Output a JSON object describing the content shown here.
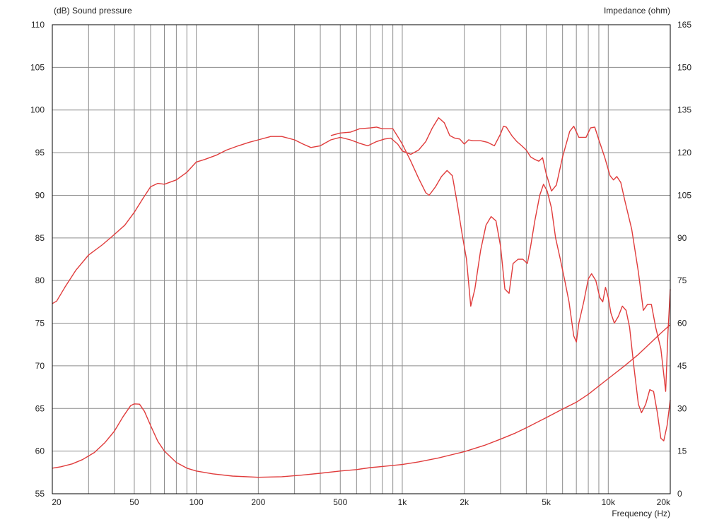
{
  "chart_data": {
    "type": "line",
    "y_axis_left": {
      "label": "(dB)  Sound pressure",
      "ylim": [
        55,
        110
      ],
      "ticks": [
        "55",
        "60",
        "65",
        "70",
        "75",
        "80",
        "85",
        "90",
        "95",
        "100",
        "105",
        "110"
      ],
      "tick_values": [
        55,
        60,
        65,
        70,
        75,
        80,
        85,
        90,
        95,
        100,
        105,
        110
      ]
    },
    "y_axis_right": {
      "label": "Impedance  (ohm)",
      "ylim": [
        0,
        165
      ],
      "ticks": [
        "0",
        "15",
        "30",
        "45",
        "60",
        "75",
        "90",
        "105",
        "120",
        "135",
        "150",
        "165"
      ],
      "tick_values": [
        0,
        15,
        30,
        45,
        60,
        75,
        90,
        105,
        120,
        135,
        150,
        165
      ]
    },
    "x_axis": {
      "label": "Frequency  (Hz)",
      "scale": "log",
      "xlim": [
        20,
        20000
      ],
      "ticks": [
        "20",
        "50",
        "100",
        "200",
        "500",
        "1k",
        "2k",
        "5k",
        "10k",
        "20k"
      ],
      "tick_values": [
        20,
        50,
        100,
        200,
        500,
        1000,
        2000,
        5000,
        10000,
        20000
      ]
    },
    "grid": true,
    "line_color": "#e03c3c",
    "series": [
      {
        "axis": "left",
        "points": [
          [
            20,
            77.3
          ],
          [
            21,
            77.6
          ],
          [
            23,
            79.2
          ],
          [
            26,
            81.2
          ],
          [
            30,
            83
          ],
          [
            35,
            84.2
          ],
          [
            40,
            85.4
          ],
          [
            45,
            86.5
          ],
          [
            50,
            88
          ],
          [
            55,
            89.6
          ],
          [
            60,
            91
          ],
          [
            65,
            91.4
          ],
          [
            70,
            91.3
          ],
          [
            80,
            91.8
          ],
          [
            90,
            92.7
          ],
          [
            100,
            93.9
          ],
          [
            110,
            94.2
          ],
          [
            125,
            94.7
          ],
          [
            140,
            95.3
          ],
          [
            160,
            95.8
          ],
          [
            180,
            96.2
          ],
          [
            200,
            96.5
          ],
          [
            230,
            96.9
          ],
          [
            260,
            96.9
          ],
          [
            300,
            96.5
          ],
          [
            330,
            96
          ],
          [
            360,
            95.6
          ],
          [
            400,
            95.8
          ],
          [
            450,
            96.5
          ],
          [
            500,
            96.8
          ],
          [
            560,
            96.5
          ],
          [
            620,
            96.1
          ],
          [
            680,
            95.8
          ],
          [
            750,
            96.3
          ],
          [
            820,
            96.6
          ],
          [
            880,
            96.7
          ],
          [
            950,
            96
          ],
          [
            1000,
            95.2
          ],
          [
            1100,
            94.8
          ],
          [
            1200,
            95.3
          ],
          [
            1300,
            96.3
          ],
          [
            1400,
            97.9
          ],
          [
            1500,
            99.1
          ],
          [
            1600,
            98.5
          ],
          [
            1700,
            97
          ],
          [
            1800,
            96.7
          ],
          [
            1900,
            96.6
          ],
          [
            2000,
            96
          ],
          [
            2100,
            96.5
          ],
          [
            2200,
            96.4
          ],
          [
            2400,
            96.4
          ],
          [
            2600,
            96.2
          ],
          [
            2800,
            95.8
          ],
          [
            3000,
            97.2
          ],
          [
            3100,
            98.1
          ],
          [
            3200,
            98
          ],
          [
            3400,
            97
          ],
          [
            3600,
            96.3
          ],
          [
            3800,
            95.8
          ],
          [
            4000,
            95.3
          ],
          [
            4200,
            94.5
          ],
          [
            4400,
            94.2
          ],
          [
            4600,
            94
          ],
          [
            4800,
            94.4
          ],
          [
            5000,
            92.5
          ],
          [
            5300,
            90.5
          ],
          [
            5600,
            91.2
          ],
          [
            6000,
            94.5
          ],
          [
            6500,
            97.5
          ],
          [
            6800,
            98.1
          ],
          [
            7200,
            96.8
          ],
          [
            7800,
            96.8
          ],
          [
            8200,
            97.9
          ],
          [
            8600,
            98
          ],
          [
            9000,
            96.5
          ],
          [
            9600,
            94.5
          ],
          [
            10200,
            92.3
          ],
          [
            10600,
            91.8
          ],
          [
            11000,
            92.2
          ],
          [
            11500,
            91.5
          ],
          [
            12000,
            89.5
          ],
          [
            13000,
            86
          ],
          [
            14000,
            81
          ],
          [
            14800,
            76.5
          ],
          [
            15500,
            77.2
          ],
          [
            16200,
            77.2
          ],
          [
            17000,
            74.5
          ],
          [
            18000,
            72
          ],
          [
            19000,
            67
          ],
          [
            19500,
            74
          ],
          [
            20000,
            79
          ]
        ]
      },
      {
        "axis": "left",
        "points": [
          [
            450,
            97
          ],
          [
            500,
            97.3
          ],
          [
            560,
            97.4
          ],
          [
            620,
            97.8
          ],
          [
            700,
            97.9
          ],
          [
            750,
            98
          ],
          [
            800,
            97.8
          ],
          [
            900,
            97.8
          ],
          [
            950,
            96.9
          ],
          [
            1000,
            96
          ],
          [
            1100,
            94
          ],
          [
            1200,
            92
          ],
          [
            1300,
            90.3
          ],
          [
            1350,
            90
          ],
          [
            1450,
            91
          ],
          [
            1550,
            92.2
          ],
          [
            1650,
            92.9
          ],
          [
            1750,
            92.3
          ],
          [
            1850,
            89
          ],
          [
            1950,
            85.5
          ],
          [
            2050,
            82.5
          ],
          [
            2150,
            77
          ],
          [
            2250,
            79
          ],
          [
            2400,
            83.5
          ],
          [
            2550,
            86.5
          ],
          [
            2700,
            87.5
          ],
          [
            2850,
            87
          ],
          [
            3000,
            84
          ],
          [
            3150,
            79
          ],
          [
            3300,
            78.5
          ],
          [
            3450,
            82
          ],
          [
            3650,
            82.5
          ],
          [
            3850,
            82.5
          ],
          [
            4050,
            82
          ],
          [
            4200,
            84
          ],
          [
            4400,
            87
          ],
          [
            4650,
            90
          ],
          [
            4850,
            91.3
          ],
          [
            5050,
            90.5
          ],
          [
            5300,
            88.5
          ],
          [
            5550,
            85
          ],
          [
            5850,
            82.5
          ],
          [
            6150,
            80
          ],
          [
            6450,
            77.5
          ],
          [
            6800,
            73.5
          ],
          [
            7000,
            72.8
          ],
          [
            7200,
            75
          ],
          [
            7600,
            77.5
          ],
          [
            8000,
            80.2
          ],
          [
            8300,
            80.8
          ],
          [
            8700,
            80
          ],
          [
            9100,
            78
          ],
          [
            9400,
            77.5
          ],
          [
            9700,
            79.2
          ],
          [
            10000,
            78
          ],
          [
            10300,
            76.2
          ],
          [
            10700,
            75
          ],
          [
            11200,
            75.8
          ],
          [
            11700,
            77
          ],
          [
            12200,
            76.5
          ],
          [
            12700,
            74.5
          ],
          [
            13300,
            70
          ],
          [
            14000,
            65.5
          ],
          [
            14500,
            64.5
          ],
          [
            15200,
            65.5
          ],
          [
            15900,
            67.2
          ],
          [
            16600,
            67
          ],
          [
            17300,
            64.5
          ],
          [
            18000,
            61.5
          ],
          [
            18600,
            61.2
          ],
          [
            19300,
            63
          ],
          [
            20000,
            66
          ]
        ]
      },
      {
        "axis": "right",
        "points": [
          [
            20,
            9
          ],
          [
            22,
            9.5
          ],
          [
            25,
            10.5
          ],
          [
            28,
            12
          ],
          [
            32,
            14.5
          ],
          [
            36,
            18
          ],
          [
            40,
            22
          ],
          [
            44,
            27
          ],
          [
            48,
            31
          ],
          [
            50,
            31.6
          ],
          [
            53,
            31.5
          ],
          [
            56,
            29
          ],
          [
            60,
            24
          ],
          [
            65,
            18.5
          ],
          [
            70,
            15
          ],
          [
            80,
            11
          ],
          [
            90,
            9
          ],
          [
            100,
            8
          ],
          [
            120,
            7
          ],
          [
            150,
            6.2
          ],
          [
            200,
            5.8
          ],
          [
            260,
            6
          ],
          [
            320,
            6.5
          ],
          [
            400,
            7.2
          ],
          [
            500,
            8
          ],
          [
            600,
            8.5
          ],
          [
            700,
            9.2
          ],
          [
            800,
            9.6
          ],
          [
            1000,
            10.3
          ],
          [
            1200,
            11.2
          ],
          [
            1500,
            12.6
          ],
          [
            2000,
            14.8
          ],
          [
            2500,
            17
          ],
          [
            3000,
            19.2
          ],
          [
            3500,
            21.2
          ],
          [
            4000,
            23.2
          ],
          [
            5000,
            26.8
          ],
          [
            6000,
            29.8
          ],
          [
            7000,
            32.2
          ],
          [
            8000,
            35
          ],
          [
            10000,
            40.5
          ],
          [
            12000,
            45
          ],
          [
            14000,
            49
          ],
          [
            16000,
            53
          ],
          [
            18000,
            56.5
          ],
          [
            20000,
            59.5
          ]
        ]
      }
    ]
  }
}
